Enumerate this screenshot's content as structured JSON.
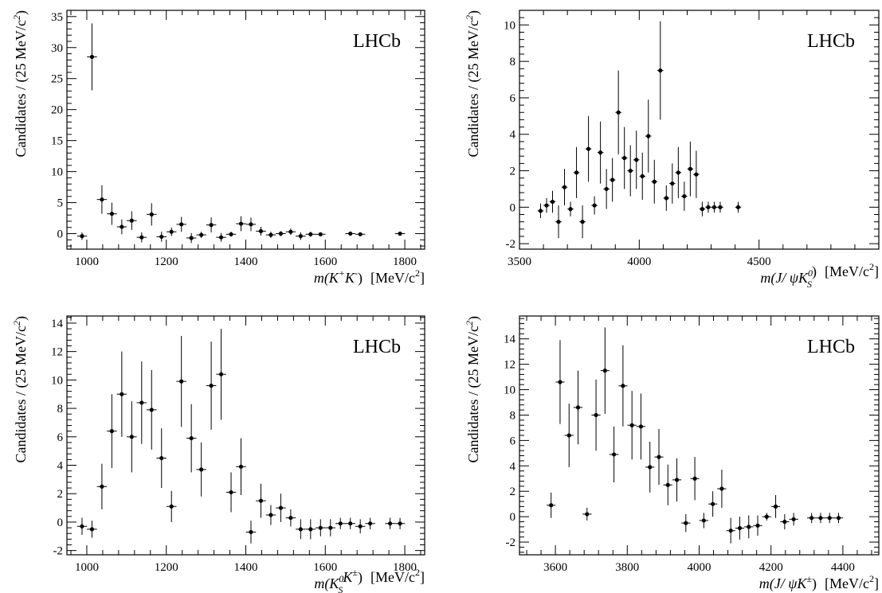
{
  "chart_data": [
    {
      "type": "scatter",
      "annotation": "LHCb",
      "xlabel_main": "m(K",
      "xlabel_parts": [
        "m(K",
        "+",
        "K",
        "-",
        ")"
      ],
      "xunit": "[MeV/c",
      "xunit_sup": "2",
      "ylabel": "Candidates / (25 MeV/c",
      "ylabel_sup": "2",
      "xlim": [
        950,
        1850
      ],
      "ylim": [
        -2.5,
        36
      ],
      "xticks": [
        1000,
        1200,
        1400,
        1600,
        1800
      ],
      "yticks": [
        0,
        5,
        10,
        15,
        20,
        25,
        30,
        35
      ],
      "points": [
        {
          "x": 988,
          "y": -0.4,
          "err": 0.6
        },
        {
          "x": 1013,
          "y": 28.5,
          "err": 5.4
        },
        {
          "x": 1038,
          "y": 5.5,
          "err": 2.3
        },
        {
          "x": 1063,
          "y": 3.2,
          "err": 1.8
        },
        {
          "x": 1088,
          "y": 1.1,
          "err": 1.2
        },
        {
          "x": 1113,
          "y": 2.1,
          "err": 1.5
        },
        {
          "x": 1138,
          "y": -0.6,
          "err": 0.8
        },
        {
          "x": 1163,
          "y": 3.1,
          "err": 1.8
        },
        {
          "x": 1188,
          "y": -0.5,
          "err": 0.8
        },
        {
          "x": 1213,
          "y": 0.3,
          "err": 0.7
        },
        {
          "x": 1238,
          "y": 1.5,
          "err": 1.2
        },
        {
          "x": 1263,
          "y": -0.7,
          "err": 0.8
        },
        {
          "x": 1288,
          "y": -0.2,
          "err": 0.5
        },
        {
          "x": 1313,
          "y": 1.4,
          "err": 1.2
        },
        {
          "x": 1338,
          "y": -0.6,
          "err": 0.7
        },
        {
          "x": 1363,
          "y": -0.1,
          "err": 0.4
        },
        {
          "x": 1388,
          "y": 1.6,
          "err": 1.2
        },
        {
          "x": 1413,
          "y": 1.5,
          "err": 1.1
        },
        {
          "x": 1438,
          "y": 0.4,
          "err": 0.7
        },
        {
          "x": 1463,
          "y": -0.2,
          "err": 0.5
        },
        {
          "x": 1488,
          "y": 0.0,
          "err": 0.4
        },
        {
          "x": 1513,
          "y": 0.3,
          "err": 0.5
        },
        {
          "x": 1538,
          "y": -0.4,
          "err": 0.6
        },
        {
          "x": 1563,
          "y": -0.1,
          "err": 0.4
        },
        {
          "x": 1588,
          "y": -0.1,
          "err": 0.3
        },
        {
          "x": 1663,
          "y": 0.0,
          "err": 0.3
        },
        {
          "x": 1688,
          "y": -0.1,
          "err": 0.3
        },
        {
          "x": 1788,
          "y": 0.0,
          "err": 0.3
        }
      ]
    },
    {
      "type": "scatter",
      "annotation": "LHCb",
      "xlabel_parts": [
        "m(J/ ψK",
        "0",
        "S",
        ")"
      ],
      "xunit": "[MeV/c",
      "xunit_sup": "2",
      "ylabel": "Candidates / (25 MeV/c",
      "ylabel_sup": "2",
      "xlim": [
        3500,
        5000
      ],
      "ylim": [
        -2.3,
        10.8
      ],
      "xticks": [
        3500,
        4000,
        4500
      ],
      "yticks": [
        -2,
        0,
        2,
        4,
        6,
        8,
        10
      ],
      "points": [
        {
          "x": 3588,
          "y": -0.2,
          "err": 0.4
        },
        {
          "x": 3613,
          "y": 0.1,
          "err": 0.4
        },
        {
          "x": 3638,
          "y": 0.3,
          "err": 0.6
        },
        {
          "x": 3663,
          "y": -0.8,
          "err": 0.9
        },
        {
          "x": 3688,
          "y": 1.1,
          "err": 1.0
        },
        {
          "x": 3713,
          "y": -0.1,
          "err": 0.4
        },
        {
          "x": 3738,
          "y": 1.9,
          "err": 1.4
        },
        {
          "x": 3763,
          "y": -0.8,
          "err": 0.9
        },
        {
          "x": 3788,
          "y": 3.2,
          "err": 1.8
        },
        {
          "x": 3813,
          "y": 0.1,
          "err": 0.5
        },
        {
          "x": 3838,
          "y": 3.0,
          "err": 1.7
        },
        {
          "x": 3863,
          "y": 1.0,
          "err": 1.1
        },
        {
          "x": 3888,
          "y": 1.5,
          "err": 1.2
        },
        {
          "x": 3913,
          "y": 5.2,
          "err": 2.3
        },
        {
          "x": 3938,
          "y": 2.7,
          "err": 1.7
        },
        {
          "x": 3963,
          "y": 2.0,
          "err": 1.4
        },
        {
          "x": 3988,
          "y": 2.6,
          "err": 1.6
        },
        {
          "x": 4013,
          "y": 1.7,
          "err": 1.3
        },
        {
          "x": 4038,
          "y": 3.9,
          "err": 2.0
        },
        {
          "x": 4063,
          "y": 1.4,
          "err": 1.2
        },
        {
          "x": 4088,
          "y": 7.5,
          "err": 2.7
        },
        {
          "x": 4113,
          "y": 0.5,
          "err": 0.7
        },
        {
          "x": 4138,
          "y": 1.3,
          "err": 1.1
        },
        {
          "x": 4163,
          "y": 1.9,
          "err": 1.4
        },
        {
          "x": 4188,
          "y": 0.6,
          "err": 0.8
        },
        {
          "x": 4213,
          "y": 2.1,
          "err": 1.5
        },
        {
          "x": 4238,
          "y": 1.8,
          "err": 1.3
        },
        {
          "x": 4263,
          "y": -0.1,
          "err": 0.4
        },
        {
          "x": 4288,
          "y": 0.0,
          "err": 0.3
        },
        {
          "x": 4313,
          "y": 0.0,
          "err": 0.3
        },
        {
          "x": 4338,
          "y": 0.0,
          "err": 0.3
        },
        {
          "x": 4413,
          "y": 0.0,
          "err": 0.3
        }
      ]
    },
    {
      "type": "scatter",
      "annotation": "LHCb",
      "xlabel_parts": [
        "m(K",
        "0",
        "S",
        "K",
        "±",
        ")"
      ],
      "xunit": "[MeV/c",
      "xunit_sup": "2",
      "ylabel": "Candidates / (25 MeV/c",
      "ylabel_sup": "2",
      "xlim": [
        950,
        1850
      ],
      "ylim": [
        -2.3,
        14.5
      ],
      "xticks": [
        1000,
        1200,
        1400,
        1600,
        1800
      ],
      "yticks": [
        -2,
        0,
        2,
        4,
        6,
        8,
        10,
        12,
        14
      ],
      "points": [
        {
          "x": 988,
          "y": -0.3,
          "err": 0.6
        },
        {
          "x": 1013,
          "y": -0.5,
          "err": 0.6
        },
        {
          "x": 1038,
          "y": 2.5,
          "err": 1.6
        },
        {
          "x": 1063,
          "y": 6.4,
          "err": 2.6
        },
        {
          "x": 1088,
          "y": 9.0,
          "err": 3.0
        },
        {
          "x": 1113,
          "y": 6.0,
          "err": 2.5
        },
        {
          "x": 1138,
          "y": 8.4,
          "err": 2.9
        },
        {
          "x": 1163,
          "y": 7.9,
          "err": 2.8
        },
        {
          "x": 1188,
          "y": 4.5,
          "err": 2.1
        },
        {
          "x": 1213,
          "y": 1.1,
          "err": 1.1
        },
        {
          "x": 1238,
          "y": 9.9,
          "err": 3.2
        },
        {
          "x": 1263,
          "y": 5.9,
          "err": 2.4
        },
        {
          "x": 1288,
          "y": 3.7,
          "err": 1.9
        },
        {
          "x": 1313,
          "y": 9.6,
          "err": 3.1
        },
        {
          "x": 1338,
          "y": 10.4,
          "err": 3.2
        },
        {
          "x": 1363,
          "y": 2.1,
          "err": 1.4
        },
        {
          "x": 1388,
          "y": 3.9,
          "err": 2.0
        },
        {
          "x": 1413,
          "y": -0.7,
          "err": 0.8
        },
        {
          "x": 1438,
          "y": 1.5,
          "err": 1.2
        },
        {
          "x": 1463,
          "y": 0.5,
          "err": 0.7
        },
        {
          "x": 1488,
          "y": 1.0,
          "err": 1.0
        },
        {
          "x": 1513,
          "y": 0.3,
          "err": 0.6
        },
        {
          "x": 1538,
          "y": -0.5,
          "err": 0.7
        },
        {
          "x": 1563,
          "y": -0.5,
          "err": 0.7
        },
        {
          "x": 1588,
          "y": -0.4,
          "err": 0.6
        },
        {
          "x": 1613,
          "y": -0.4,
          "err": 0.6
        },
        {
          "x": 1638,
          "y": -0.1,
          "err": 0.4
        },
        {
          "x": 1663,
          "y": -0.1,
          "err": 0.4
        },
        {
          "x": 1688,
          "y": -0.3,
          "err": 0.5
        },
        {
          "x": 1713,
          "y": -0.1,
          "err": 0.4
        },
        {
          "x": 1763,
          "y": -0.1,
          "err": 0.4
        },
        {
          "x": 1788,
          "y": -0.1,
          "err": 0.4
        }
      ]
    },
    {
      "type": "scatter",
      "annotation": "LHCb",
      "xlabel_parts": [
        "m(J/ ψK",
        "±",
        ")"
      ],
      "xunit": "[MeV/c",
      "xunit_sup": "2",
      "ylabel": "Candidates / (25 MeV/c",
      "ylabel_sup": "2",
      "xlim": [
        3500,
        4500
      ],
      "ylim": [
        -3,
        15.8
      ],
      "xticks": [
        3600,
        3800,
        4000,
        4200,
        4400
      ],
      "yticks": [
        -2,
        0,
        2,
        4,
        6,
        8,
        10,
        12,
        14
      ],
      "points": [
        {
          "x": 3588,
          "y": 0.9,
          "err": 1.0
        },
        {
          "x": 3613,
          "y": 10.6,
          "err": 3.3
        },
        {
          "x": 3638,
          "y": 6.4,
          "err": 2.5
        },
        {
          "x": 3663,
          "y": 8.6,
          "err": 2.9
        },
        {
          "x": 3688,
          "y": 0.2,
          "err": 0.5
        },
        {
          "x": 3713,
          "y": 8.0,
          "err": 2.8
        },
        {
          "x": 3738,
          "y": 11.5,
          "err": 3.4
        },
        {
          "x": 3763,
          "y": 4.9,
          "err": 2.2
        },
        {
          "x": 3788,
          "y": 10.3,
          "err": 3.2
        },
        {
          "x": 3813,
          "y": 7.2,
          "err": 2.7
        },
        {
          "x": 3838,
          "y": 7.1,
          "err": 2.6
        },
        {
          "x": 3863,
          "y": 3.9,
          "err": 2.0
        },
        {
          "x": 3888,
          "y": 4.7,
          "err": 2.2
        },
        {
          "x": 3913,
          "y": 2.5,
          "err": 1.6
        },
        {
          "x": 3938,
          "y": 2.9,
          "err": 1.7
        },
        {
          "x": 3963,
          "y": -0.5,
          "err": 0.7
        },
        {
          "x": 3988,
          "y": 3.0,
          "err": 1.7
        },
        {
          "x": 4013,
          "y": -0.3,
          "err": 0.6
        },
        {
          "x": 4038,
          "y": 1.0,
          "err": 1.0
        },
        {
          "x": 4063,
          "y": 2.2,
          "err": 1.5
        },
        {
          "x": 4088,
          "y": -1.1,
          "err": 1.0
        },
        {
          "x": 4113,
          "y": -0.9,
          "err": 0.9
        },
        {
          "x": 4138,
          "y": -0.8,
          "err": 0.9
        },
        {
          "x": 4163,
          "y": -0.7,
          "err": 0.8
        },
        {
          "x": 4188,
          "y": 0.0,
          "err": 0.3
        },
        {
          "x": 4213,
          "y": 0.8,
          "err": 0.9
        },
        {
          "x": 4238,
          "y": -0.4,
          "err": 0.6
        },
        {
          "x": 4263,
          "y": -0.2,
          "err": 0.5
        },
        {
          "x": 4313,
          "y": -0.1,
          "err": 0.4
        },
        {
          "x": 4338,
          "y": -0.1,
          "err": 0.4
        },
        {
          "x": 4363,
          "y": -0.1,
          "err": 0.4
        },
        {
          "x": 4388,
          "y": -0.1,
          "err": 0.4
        }
      ]
    }
  ]
}
